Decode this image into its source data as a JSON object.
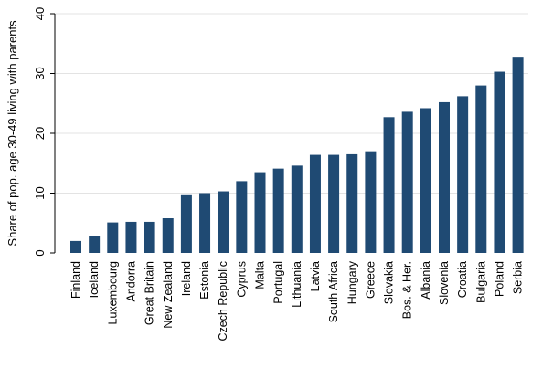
{
  "chart_data": {
    "type": "bar",
    "title": "",
    "xlabel": "",
    "ylabel": "Share of pop. age 30-49 living with parents",
    "ylim": [
      0,
      40
    ],
    "yticks": [
      0,
      10,
      20,
      30,
      40
    ],
    "grid": true,
    "bar_color": "#1f4a73",
    "categories": [
      "Finland",
      "Iceland",
      "Luxembourg",
      "Andorra",
      "Great Britain",
      "New Zealand",
      "Ireland",
      "Estonia",
      "Czech Republic",
      "Cyprus",
      "Malta",
      "Portugal",
      "Lithuania",
      "Latvia",
      "South Africa",
      "Hungary",
      "Greece",
      "Slovakia",
      "Bos. & Her.",
      "Albania",
      "Slovenia",
      "Croatia",
      "Bulgaria",
      "Poland",
      "Serbia"
    ],
    "values": [
      2.0,
      2.9,
      5.1,
      5.2,
      5.2,
      5.8,
      9.8,
      10.0,
      10.3,
      12.0,
      13.5,
      14.1,
      14.6,
      16.4,
      16.4,
      16.5,
      17.0,
      22.7,
      23.6,
      24.2,
      25.2,
      26.2,
      28.0,
      30.3,
      32.8
    ]
  }
}
